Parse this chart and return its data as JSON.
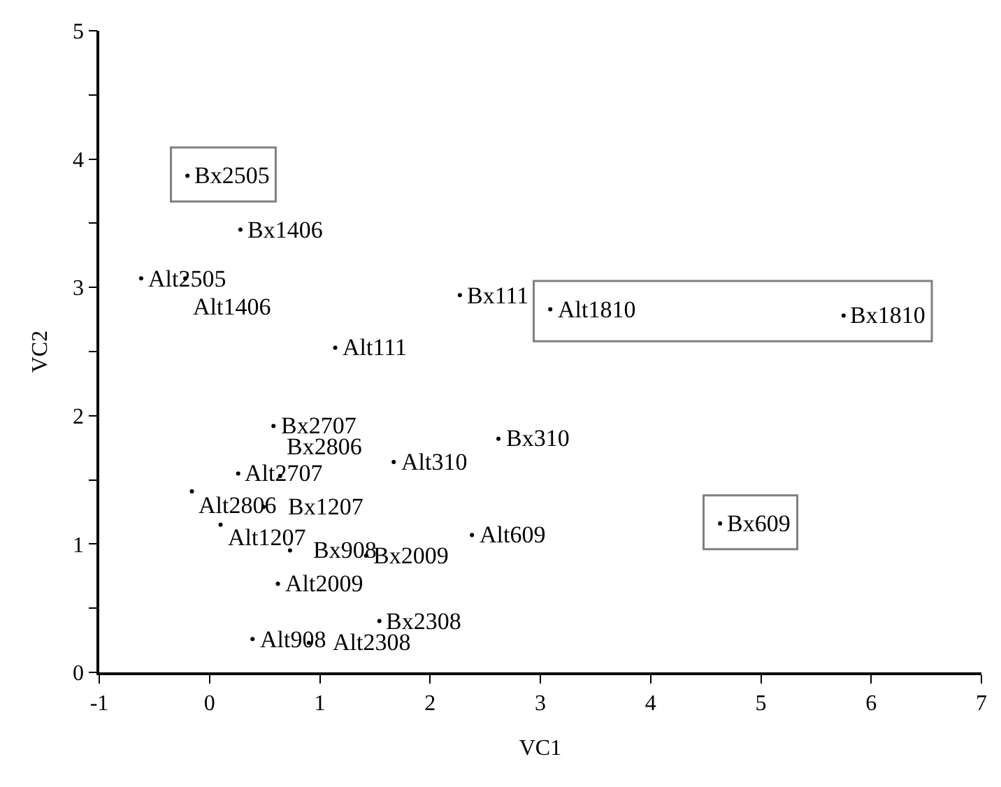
{
  "chart_data": {
    "type": "scatter",
    "xlabel": "VC1",
    "ylabel": "VC2",
    "x": [
      -0.2,
      0.28,
      -0.62,
      -0.22,
      2.27,
      3.09,
      5.75,
      1.14,
      0.58,
      2.62,
      1.67,
      0.26,
      0.64,
      -0.16,
      0.49,
      0.1,
      4.63,
      2.38,
      0.73,
      1.42,
      0.62,
      1.54,
      0.39,
      0.9
    ],
    "values": [
      3.87,
      3.45,
      3.07,
      3.07,
      2.94,
      2.83,
      2.78,
      2.53,
      1.92,
      1.82,
      1.64,
      1.55,
      1.53,
      1.41,
      1.29,
      1.15,
      1.16,
      1.07,
      0.95,
      0.91,
      0.69,
      0.4,
      0.26,
      0.23
    ],
    "value_labels": [
      null,
      "Bx1406",
      "Alt2505",
      "Alt1406",
      "Bx111",
      null,
      null,
      "Alt111",
      "Bx2707",
      "Bx310",
      "Alt310",
      "Alt2707",
      "Bx2806",
      "Alt2806",
      "Bx1207",
      "Alt1207",
      null,
      "Alt609",
      "Bx908",
      "Bx2009",
      "Alt2009",
      "Bx2308",
      "Alt908",
      "Alt2308"
    ],
    "annotations": [
      {
        "text": "Bx2505",
        "x": -0.2,
        "y": 3.87
      },
      {
        "text": "Alt1810",
        "x": 3.09,
        "y": 2.83
      },
      {
        "text": "Bx1810",
        "x": 5.75,
        "y": 2.78
      },
      {
        "text": "Bx609",
        "x": 4.63,
        "y": 1.16
      }
    ],
    "marker": "circle",
    "color": "#000000",
    "xlim": [
      -1,
      7
    ],
    "xticks": [
      -1,
      0,
      1,
      2,
      3,
      4,
      5,
      6,
      7
    ],
    "ylim": [
      0,
      5
    ],
    "yticks": [
      0,
      {
        "value": 0.5,
        "label": null
      },
      1,
      {
        "value": 1.5,
        "label": null
      },
      2,
      {
        "value": 2.5,
        "label": null
      },
      3,
      {
        "value": 3.5,
        "label": null
      },
      4,
      {
        "value": 4.5,
        "label": null
      },
      5
    ]
  }
}
